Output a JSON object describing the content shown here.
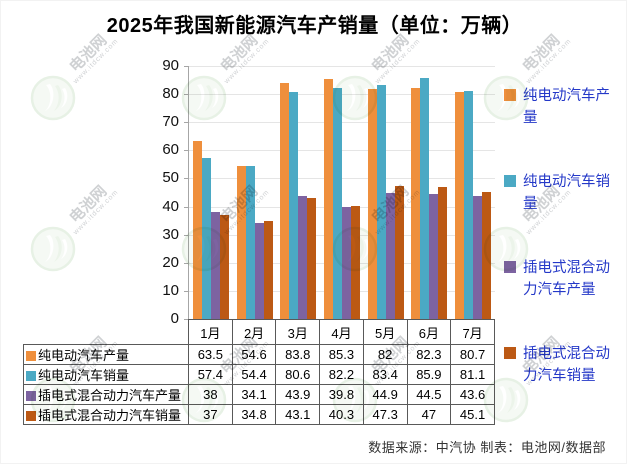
{
  "title": "2025年我国新能源汽车产销量（单位：万辆）",
  "footer": {
    "text": "数据来源：中汽协  制表：电池网/数据部"
  },
  "watermark": {
    "brand": "电池网",
    "url": "www.itdcw.com"
  },
  "colors": {
    "bev_production": "#EF8F3C",
    "bev_sales": "#4BA9C4",
    "phev_production": "#7D63A1",
    "phev_sales": "#BC5914",
    "legend_text": "#2438C8",
    "gridline": "#e5e5e5"
  },
  "chart_data": {
    "type": "bar",
    "title": "2025年我国新能源汽车产销量（单位：万辆）",
    "categories": [
      "1月",
      "2月",
      "3月",
      "4月",
      "5月",
      "6月",
      "7月"
    ],
    "series": [
      {
        "name": "纯电动汽车产量",
        "color": "#EF8F3C",
        "values": [
          63.5,
          54.6,
          83.8,
          85.3,
          82,
          82.3,
          80.7
        ]
      },
      {
        "name": "纯电动汽车销量",
        "color": "#4BA9C4",
        "values": [
          57.4,
          54.4,
          80.6,
          82.2,
          83.4,
          85.9,
          81.1
        ]
      },
      {
        "name": "插电式混合动力汽车产量",
        "color": "#7D63A1",
        "values": [
          38,
          34.1,
          43.9,
          39.8,
          44.9,
          44.5,
          43.6
        ]
      },
      {
        "name": "插电式混合动力汽车销量",
        "color": "#BC5914",
        "values": [
          37,
          34.8,
          43.1,
          40.3,
          47.3,
          47,
          45.1
        ]
      }
    ],
    "xlabel": "",
    "ylabel": "",
    "ylim": [
      0,
      90
    ],
    "ytick_step": 10,
    "grid": true,
    "legend_position": "right",
    "data_table_shown": true
  }
}
